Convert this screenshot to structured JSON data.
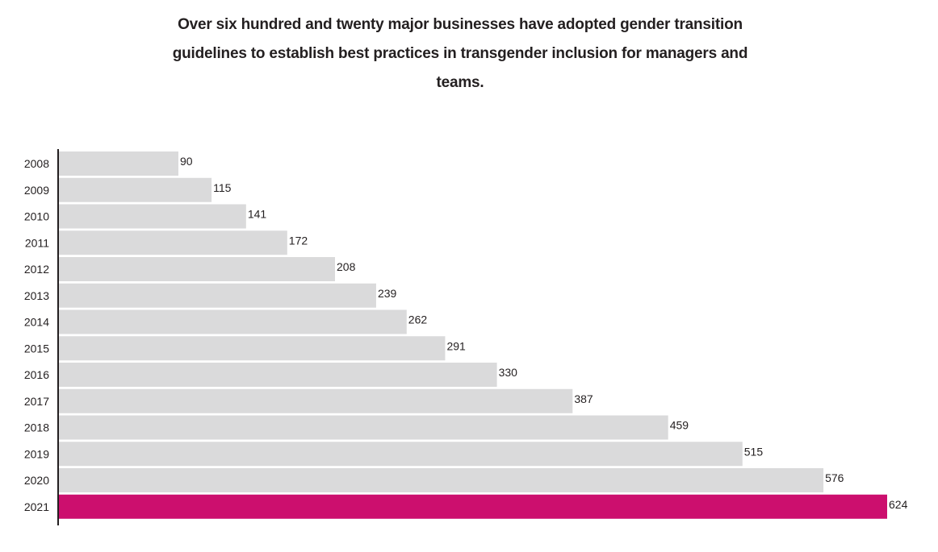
{
  "chart_data": {
    "type": "bar",
    "orientation": "horizontal",
    "title": "Over six hundred and twenty major businesses have adopted gender transition guidelines to establish best practices in transgender inclusion for managers and teams.",
    "xlabel": "",
    "ylabel": "",
    "xlim": [
      0,
      624
    ],
    "grid": false,
    "categories": [
      "2008",
      "2009",
      "2010",
      "2011",
      "2012",
      "2013",
      "2014",
      "2015",
      "2016",
      "2017",
      "2018",
      "2019",
      "2020",
      "2021"
    ],
    "values": [
      90,
      115,
      141,
      172,
      208,
      239,
      262,
      291,
      330,
      387,
      459,
      515,
      576,
      624
    ],
    "bar_color": "#dadadb",
    "highlight_color": "#cc0f6e",
    "highlight_category": "2021",
    "axis_color": "#231f20",
    "text_color": "#231f20"
  }
}
